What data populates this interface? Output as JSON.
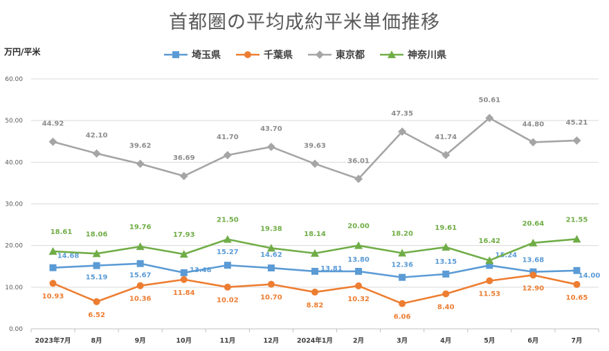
{
  "chart_data": {
    "type": "line",
    "title": "首都圏の平均成約平米単価推移",
    "ylabel": "万円/平米",
    "xlabel": "",
    "ylim": [
      0,
      60
    ],
    "ytick_labels": [
      "0.00",
      "10.00",
      "20.00",
      "30.00",
      "40.00",
      "50.00",
      "60.00"
    ],
    "grid": true,
    "legend_position": "top",
    "categories": [
      "2023年7月",
      "8月",
      "9月",
      "10月",
      "11月",
      "12月",
      "2024年1月",
      "2月",
      "3月",
      "4月",
      "5月",
      "6月",
      "7月"
    ],
    "series": [
      {
        "name": "埼玉県",
        "color": "#5b9bd5",
        "marker": "square",
        "values": [
          14.68,
          15.19,
          15.67,
          13.48,
          15.27,
          14.62,
          13.81,
          13.8,
          12.36,
          13.15,
          15.24,
          13.68,
          14.0
        ],
        "labels": [
          "14.68",
          "15.19",
          "15.67",
          "13.48",
          "15.27",
          "14.62",
          "13.81",
          "13.80",
          "12.36",
          "13.15",
          "15.24",
          "13.68",
          "14.00"
        ]
      },
      {
        "name": "千葉県",
        "color": "#ed7d31",
        "marker": "circle",
        "values": [
          10.93,
          6.52,
          10.36,
          11.84,
          10.02,
          10.7,
          8.82,
          10.32,
          6.06,
          8.4,
          11.53,
          12.9,
          10.65
        ],
        "labels": [
          "10.93",
          "6.52",
          "10.36",
          "11.84",
          "10.02",
          "10.70",
          "8.82",
          "10.32",
          "6.06",
          "8.40",
          "11.53",
          "12.90",
          "10.65"
        ]
      },
      {
        "name": "東京都",
        "color": "#a5a5a5",
        "marker": "diamond",
        "values": [
          44.92,
          42.1,
          39.62,
          36.69,
          41.7,
          43.7,
          39.63,
          36.01,
          47.35,
          41.74,
          50.61,
          44.8,
          45.21
        ],
        "labels": [
          "44.92",
          "42.10",
          "39.62",
          "36.69",
          "41.70",
          "43.70",
          "39.63",
          "36.01",
          "47.35",
          "41.74",
          "50.61",
          "44.80",
          "45.21"
        ]
      },
      {
        "name": "神奈川県",
        "color": "#70ad47",
        "marker": "triangle",
        "values": [
          18.61,
          18.06,
          19.76,
          17.93,
          21.5,
          19.38,
          18.14,
          20.0,
          18.2,
          19.61,
          16.42,
          20.64,
          21.55
        ],
        "labels": [
          "18.61",
          "18.06",
          "19.76",
          "17.93",
          "21.50",
          "19.38",
          "18.14",
          "20.00",
          "18.20",
          "19.61",
          "16.42",
          "20.64",
          "21.55"
        ]
      }
    ]
  }
}
